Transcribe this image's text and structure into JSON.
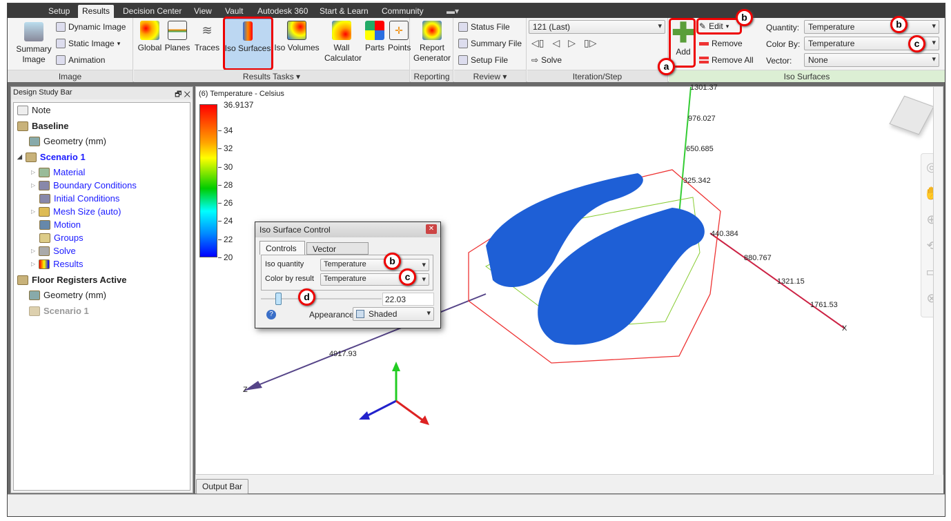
{
  "tabs": [
    {
      "label": "Setup"
    },
    {
      "label": "Results",
      "active": true
    },
    {
      "label": "Decision Center"
    },
    {
      "label": "View"
    },
    {
      "label": "Vault"
    },
    {
      "label": "Autodesk 360"
    },
    {
      "label": "Start & Learn"
    },
    {
      "label": "Community"
    }
  ],
  "ribbon": {
    "image": {
      "label": "Image",
      "summary": "Summary Image",
      "dynamic": "Dynamic Image",
      "static": "Static Image",
      "animation": "Animation"
    },
    "results_tasks": {
      "label": "Results Tasks",
      "items": [
        "Global",
        "Planes",
        "Traces",
        "Iso Surfaces",
        "Iso Volumes",
        "Wall Calculator",
        "Parts",
        "Points"
      ]
    },
    "reporting": {
      "label": "Reporting",
      "report": "Report Generator"
    },
    "review": {
      "label": "Review",
      "status": "Status File",
      "summary": "Summary File",
      "setup": "Setup File"
    },
    "iteration": {
      "label": "Iteration/Step",
      "value": "121 (Last)",
      "solve": "Solve"
    },
    "iso": {
      "label": "Iso Surfaces",
      "add": "Add",
      "edit": "Edit",
      "remove": "Remove",
      "remove_all": "Remove All",
      "quantity_label": "Quantity:",
      "quantity": "Temperature",
      "colorby_label": "Color By:",
      "colorby": "Temperature",
      "vector_label": "Vector:",
      "vector": "None"
    }
  },
  "callouts": {
    "a": "a",
    "b": "b",
    "c": "c",
    "d": "d"
  },
  "design_study_bar": {
    "title": "Design Study Bar",
    "items": [
      {
        "label": "Note"
      },
      {
        "label": "Baseline"
      },
      {
        "label": "Geometry (mm)"
      },
      {
        "label": "Scenario 1"
      },
      {
        "label": "Material"
      },
      {
        "label": "Boundary Conditions"
      },
      {
        "label": "Initial Conditions"
      },
      {
        "label": "Mesh Size (auto)"
      },
      {
        "label": "Motion"
      },
      {
        "label": "Groups"
      },
      {
        "label": "Solve"
      },
      {
        "label": "Results"
      },
      {
        "label": "Floor Registers Active"
      },
      {
        "label": "Geometry (mm)"
      },
      {
        "label": "Scenario 1"
      }
    ]
  },
  "legend": {
    "title": "(6) Temperature - Celsius",
    "max": "36.9137",
    "ticks": [
      "34",
      "32",
      "30",
      "28",
      "26",
      "24",
      "22",
      "20"
    ]
  },
  "axes": {
    "y": [
      "1301.37",
      "976.027",
      "650.685",
      "325.342"
    ],
    "x": [
      "440.384",
      "880.767",
      "1321.15",
      "1761.53"
    ],
    "x_label": "X",
    "z": "4917.93",
    "z_label": "Z"
  },
  "dialog": {
    "title": "Iso Surface Control",
    "tab_controls": "Controls",
    "tab_vector": "Vector settings",
    "iso_quantity_label": "Iso quantity",
    "iso_quantity": "Temperature",
    "color_label": "Color by result",
    "color": "Temperature",
    "slider_value": "22.03",
    "appearance_label": "Appearance:",
    "appearance": "Shaded"
  },
  "output_bar": "Output Bar",
  "colors": {
    "accent_red": "#e00000",
    "iso_blue": "#1e5fd6",
    "ribbon_green": "#dcefd4"
  }
}
